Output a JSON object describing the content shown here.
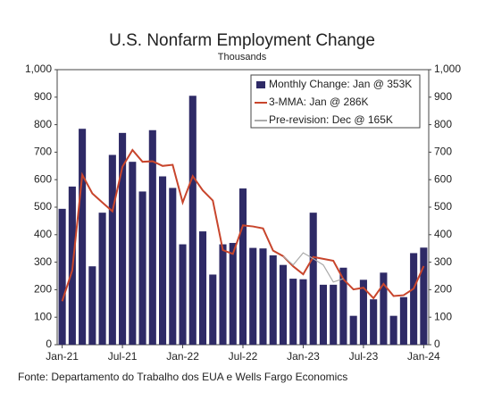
{
  "chart_data": {
    "type": "bar_line",
    "title": "U.S. Nonfarm Employment Change",
    "subtitle": "Thousands",
    "source": "Fonte: Departamento do Trabalho dos EUA e Wells Fargo Economics",
    "categories": [
      "Jan-21",
      null,
      null,
      null,
      null,
      null,
      "Jul-21",
      null,
      null,
      null,
      null,
      null,
      "Jan-22",
      null,
      null,
      null,
      null,
      null,
      "Jul-22",
      null,
      null,
      null,
      null,
      null,
      "Jan-23",
      null,
      null,
      null,
      null,
      null,
      "Jul-23",
      null,
      null,
      null,
      null,
      null,
      "Jan-24"
    ],
    "series": [
      {
        "name": "Monthly Change: Jan @ 353K",
        "kind": "bar",
        "color": "#2e2a66",
        "values": [
          494,
          575,
          785,
          285,
          480,
          690,
          770,
          665,
          557,
          780,
          612,
          570,
          365,
          905,
          412,
          255,
          365,
          370,
          568,
          352,
          350,
          325,
          290,
          240,
          238,
          480,
          218,
          218,
          280,
          105,
          236,
          165,
          262,
          105,
          173,
          333,
          353
        ]
      },
      {
        "name": "3-MMA: Jan @ 286K",
        "kind": "line",
        "color": "#c8452c",
        "values": [
          158,
          270,
          618,
          550,
          517,
          485,
          647,
          708,
          665,
          667,
          650,
          654,
          517,
          613,
          561,
          524,
          344,
          330,
          434,
          430,
          423,
          342,
          322,
          285,
          256,
          319,
          312,
          305,
          238,
          201,
          207,
          169,
          221,
          177,
          180,
          204,
          286
        ]
      },
      {
        "name": "Pre-revision: Dec @ 165K",
        "kind": "line",
        "color": "#aaaaaa",
        "values": [
          null,
          null,
          null,
          null,
          null,
          null,
          null,
          null,
          null,
          null,
          null,
          null,
          null,
          null,
          null,
          null,
          null,
          null,
          null,
          null,
          null,
          null,
          322,
          290,
          334,
          313,
          290,
          228,
          240,
          null,
          null,
          null,
          null,
          null,
          null,
          null,
          null
        ]
      }
    ],
    "ylim": [
      0,
      1000
    ],
    "yticks": [
      0,
      100,
      200,
      300,
      400,
      500,
      600,
      700,
      800,
      900,
      {
        "value": 1000,
        "label": "1,000"
      }
    ],
    "y2lim": [
      0,
      1000
    ],
    "y2ticks": [
      0,
      100,
      200,
      300,
      400,
      500,
      600,
      700,
      800,
      900,
      {
        "value": 1000,
        "label": "1,000"
      }
    ]
  }
}
